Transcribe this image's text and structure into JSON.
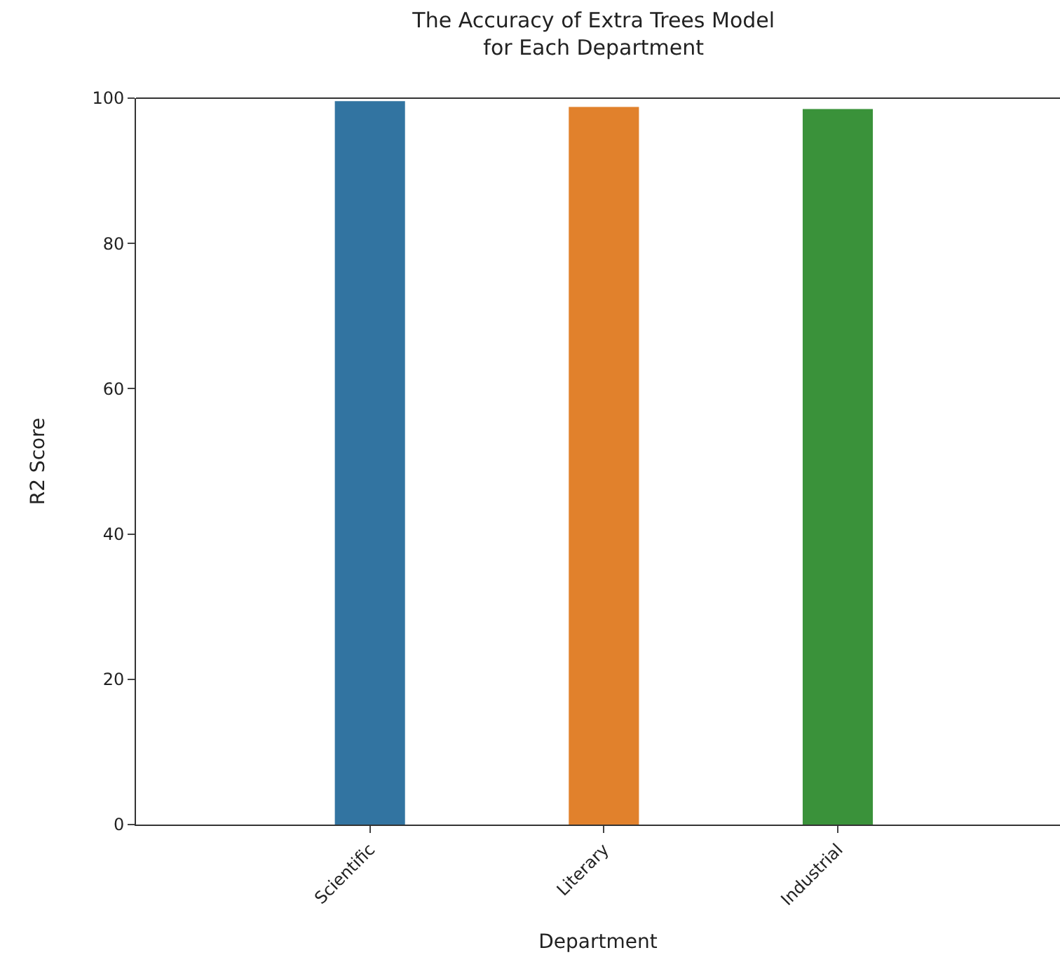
{
  "chart_data": {
    "type": "bar",
    "title": "The Accuracy of Extra Trees Model\nfor Each Department",
    "xlabel": "Department",
    "ylabel": "R2 Score",
    "categories": [
      "Scientific",
      "Literary",
      "Industrial"
    ],
    "values": [
      99.6,
      98.8,
      98.5
    ],
    "colors": [
      "#3274a1",
      "#e1812c",
      "#3a923a"
    ],
    "ylim": [
      0,
      100
    ],
    "yticks": [
      0,
      20,
      40,
      60,
      80,
      100
    ]
  }
}
